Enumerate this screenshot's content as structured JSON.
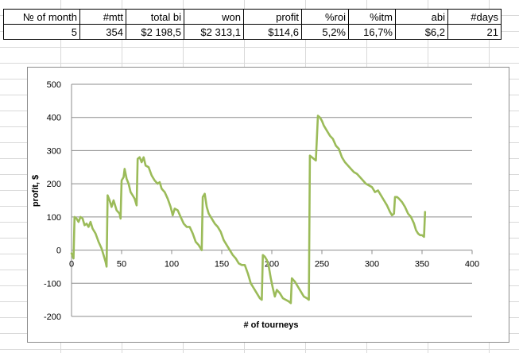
{
  "table": {
    "headers": [
      "№ of month",
      "#mtt",
      "total bi",
      "won",
      "profit",
      "%roi",
      "%itm",
      "abi",
      "#days"
    ],
    "values": [
      "5",
      "354",
      "$2 198,5",
      "$2 313,1",
      "$114,6",
      "5,2%",
      "16,7%",
      "$6,2",
      "21"
    ]
  },
  "chart_data": {
    "type": "line",
    "xlabel": "# of tourneys",
    "ylabel": "profit, $",
    "xlim": [
      0,
      400
    ],
    "ylim": [
      -200,
      500
    ],
    "xticks": [
      0,
      50,
      100,
      150,
      200,
      250,
      300,
      350,
      400
    ],
    "yticks": [
      -200,
      -100,
      0,
      100,
      200,
      300,
      400,
      500
    ],
    "grid": "horizontal",
    "legend": "none",
    "series": [
      {
        "color": "#9bbb59",
        "points": [
          [
            0,
            -10
          ],
          [
            2,
            -25
          ],
          [
            3,
            100
          ],
          [
            5,
            95
          ],
          [
            7,
            85
          ],
          [
            9,
            100
          ],
          [
            11,
            95
          ],
          [
            13,
            75
          ],
          [
            15,
            80
          ],
          [
            17,
            70
          ],
          [
            19,
            85
          ],
          [
            21,
            65
          ],
          [
            24,
            50
          ],
          [
            27,
            25
          ],
          [
            30,
            5
          ],
          [
            32,
            -15
          ],
          [
            34,
            -35
          ],
          [
            35,
            -50
          ],
          [
            36,
            165
          ],
          [
            38,
            150
          ],
          [
            40,
            130
          ],
          [
            42,
            150
          ],
          [
            45,
            120
          ],
          [
            48,
            110
          ],
          [
            49,
            95
          ],
          [
            50,
            210
          ],
          [
            52,
            220
          ],
          [
            53,
            245
          ],
          [
            55,
            215
          ],
          [
            57,
            200
          ],
          [
            59,
            175
          ],
          [
            61,
            165
          ],
          [
            63,
            155
          ],
          [
            65,
            135
          ],
          [
            66,
            275
          ],
          [
            68,
            280
          ],
          [
            70,
            265
          ],
          [
            72,
            280
          ],
          [
            74,
            255
          ],
          [
            77,
            250
          ],
          [
            80,
            225
          ],
          [
            83,
            210
          ],
          [
            86,
            200
          ],
          [
            88,
            205
          ],
          [
            90,
            185
          ],
          [
            93,
            175
          ],
          [
            96,
            155
          ],
          [
            99,
            130
          ],
          [
            101,
            105
          ],
          [
            103,
            125
          ],
          [
            106,
            120
          ],
          [
            109,
            100
          ],
          [
            112,
            80
          ],
          [
            115,
            70
          ],
          [
            118,
            70
          ],
          [
            121,
            50
          ],
          [
            124,
            25
          ],
          [
            127,
            15
          ],
          [
            129,
            5
          ],
          [
            130,
            0
          ],
          [
            131,
            160
          ],
          [
            133,
            170
          ],
          [
            135,
            130
          ],
          [
            137,
            110
          ],
          [
            140,
            95
          ],
          [
            143,
            80
          ],
          [
            146,
            70
          ],
          [
            149,
            55
          ],
          [
            152,
            30
          ],
          [
            155,
            15
          ],
          [
            158,
            0
          ],
          [
            161,
            -15
          ],
          [
            164,
            -25
          ],
          [
            167,
            -40
          ],
          [
            170,
            -45
          ],
          [
            173,
            -45
          ],
          [
            176,
            -70
          ],
          [
            179,
            -100
          ],
          [
            182,
            -115
          ],
          [
            185,
            -130
          ],
          [
            188,
            -145
          ],
          [
            190,
            -150
          ],
          [
            191,
            -15
          ],
          [
            193,
            -20
          ],
          [
            195,
            -30
          ],
          [
            197,
            -50
          ],
          [
            199,
            -85
          ],
          [
            201,
            -115
          ],
          [
            203,
            -140
          ],
          [
            205,
            -120
          ],
          [
            208,
            -130
          ],
          [
            211,
            -145
          ],
          [
            214,
            -150
          ],
          [
            217,
            -155
          ],
          [
            219,
            -160
          ],
          [
            220,
            -85
          ],
          [
            223,
            -95
          ],
          [
            226,
            -110
          ],
          [
            229,
            -125
          ],
          [
            232,
            -140
          ],
          [
            235,
            -145
          ],
          [
            237,
            -150
          ],
          [
            238,
            285
          ],
          [
            240,
            280
          ],
          [
            242,
            275
          ],
          [
            244,
            270
          ],
          [
            246,
            405
          ],
          [
            248,
            400
          ],
          [
            250,
            390
          ],
          [
            252,
            375
          ],
          [
            255,
            360
          ],
          [
            258,
            345
          ],
          [
            261,
            335
          ],
          [
            264,
            315
          ],
          [
            267,
            305
          ],
          [
            270,
            280
          ],
          [
            273,
            265
          ],
          [
            276,
            255
          ],
          [
            279,
            245
          ],
          [
            282,
            235
          ],
          [
            285,
            230
          ],
          [
            288,
            220
          ],
          [
            291,
            210
          ],
          [
            294,
            200
          ],
          [
            297,
            195
          ],
          [
            300,
            190
          ],
          [
            303,
            175
          ],
          [
            306,
            180
          ],
          [
            309,
            165
          ],
          [
            312,
            150
          ],
          [
            315,
            135
          ],
          [
            318,
            115
          ],
          [
            320,
            105
          ],
          [
            322,
            110
          ],
          [
            323,
            160
          ],
          [
            325,
            160
          ],
          [
            327,
            155
          ],
          [
            330,
            145
          ],
          [
            333,
            130
          ],
          [
            336,
            110
          ],
          [
            339,
            100
          ],
          [
            342,
            80
          ],
          [
            344,
            60
          ],
          [
            346,
            50
          ],
          [
            348,
            45
          ],
          [
            350,
            45
          ],
          [
            352,
            40
          ],
          [
            353,
            115
          ]
        ]
      }
    ]
  }
}
